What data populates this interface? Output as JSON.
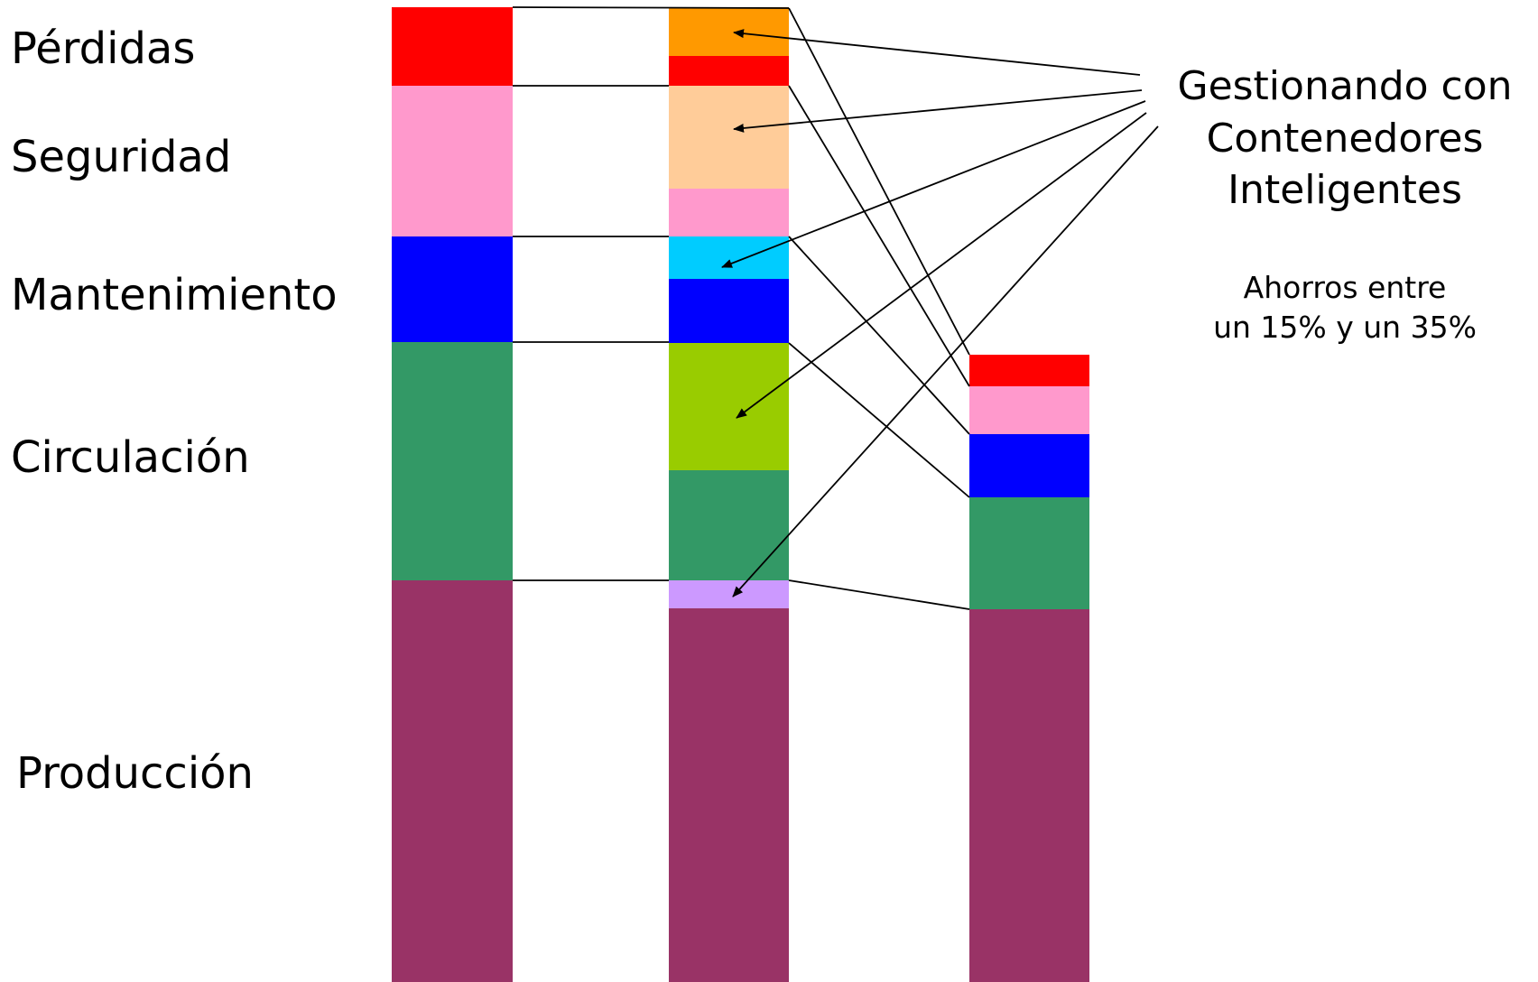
{
  "categories": [
    {
      "key": "perdidas",
      "label": "Pérdidas"
    },
    {
      "key": "seguridad",
      "label": "Seguridad"
    },
    {
      "key": "mantenimiento",
      "label": "Mantenimiento"
    },
    {
      "key": "circulacion",
      "label": "Circulación"
    },
    {
      "key": "produccion",
      "label": "Producción"
    }
  ],
  "side_note": {
    "title_lines": [
      "Gestionando con",
      "Contenedores",
      "Inteligentes"
    ],
    "subtitle_lines": [
      "Ahorros entre",
      "un 15% y un 35%"
    ]
  },
  "colors": {
    "perdidas": "#FF0000",
    "seguridad": "#FF99CC",
    "mantenimiento": "#0000FF",
    "circulacion": "#339966",
    "produccion": "#993366",
    "ahorro_perdidas": "#FF9900",
    "ahorro_seguridad": "#FFCC99",
    "ahorro_mantenimiento": "#00CCFF",
    "ahorro_circulacion": "#99CC00",
    "ahorro_produccion": "#CC99FF"
  }
}
